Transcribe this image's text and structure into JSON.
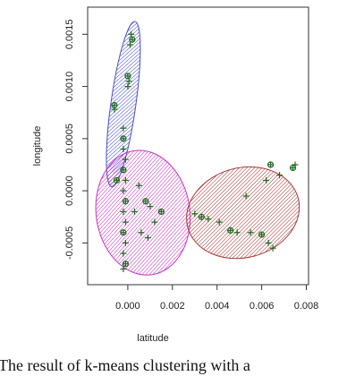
{
  "chart_data": {
    "type": "scatter",
    "x_label": "latitude",
    "y_label": "longitude",
    "caption": "The result of k-means clustering with a",
    "xlim": [
      -0.0018,
      0.0081
    ],
    "ylim": [
      -0.0009,
      0.00176
    ],
    "xticks": [
      {
        "value": 0,
        "label": "0.000"
      },
      {
        "value": 0.002,
        "label": "0.002"
      },
      {
        "value": 0.004,
        "label": "0.004"
      },
      {
        "value": 0.006,
        "label": "0.006"
      },
      {
        "value": 0.008,
        "label": "0.008"
      }
    ],
    "yticks": [
      {
        "value": -0.0005,
        "label": "-0.0005"
      },
      {
        "value": 0,
        "label": "0.0000"
      },
      {
        "value": 0.0005,
        "label": "0.0005"
      },
      {
        "value": 0.001,
        "label": "0.0010"
      },
      {
        "value": 0.0015,
        "label": "0.0015"
      }
    ],
    "ellipses": [
      {
        "cx": -0.0002,
        "cy": 0.00083,
        "rx": 0.00056,
        "ry": 0.0008,
        "angle": 8,
        "color": "#4a4fc8"
      },
      {
        "cx": 0.00068,
        "cy": -0.00021,
        "rx": 0.0021,
        "ry": 0.0006,
        "angle": -8,
        "color": "#c832c8"
      },
      {
        "cx": 0.00516,
        "cy": -0.00021,
        "rx": 0.00256,
        "ry": 0.00043,
        "angle": -15,
        "color": "#a83a3a"
      }
    ],
    "series": [
      {
        "color": "#1f6b1f",
        "x": [
          0.0002,
          0.00015,
          0.0001,
          0.0,
          5e-05,
          0.0,
          -0.0006,
          -0.0006,
          -0.0002,
          -0.0002,
          -0.0002,
          -0.0001,
          -0.0002,
          -0.0001,
          -0.0002,
          -0.0001,
          -0.0002,
          -0.0001,
          -0.0002,
          -0.0001,
          -0.0002,
          -0.0001,
          -0.0002,
          0.0005,
          0.0008,
          0.001,
          0.0012,
          0.0015,
          0.0006,
          0.0009,
          -0.0005,
          0.0003,
          0.003,
          0.0033,
          0.0036,
          0.0041,
          0.0046,
          0.0049,
          0.0055,
          0.006,
          0.0063,
          0.0065,
          0.0064,
          0.0068,
          0.0075,
          0.0074,
          0.0053,
          0.0062
        ],
        "values": [
          0.00145,
          0.0015,
          0.0014,
          0.0011,
          0.00105,
          0.001,
          0.00082,
          0.00078,
          0.0006,
          0.0005,
          0.0004,
          0.0003,
          0.0002,
          0.0001,
          0.0,
          -0.0001,
          -0.0002,
          -0.0003,
          -0.0004,
          -0.0005,
          -0.0006,
          -0.0007,
          -0.00075,
          5e-05,
          -0.0001,
          -0.00015,
          -0.0003,
          -0.0002,
          -0.0004,
          -0.00045,
          0.0001,
          -0.0002,
          -0.00022,
          -0.00025,
          -0.00027,
          -0.0003,
          -0.00038,
          -0.0004,
          -0.0004,
          -0.00042,
          -0.0005,
          -0.00055,
          0.00025,
          0.00015,
          0.00025,
          0.00022,
          -5e-05,
          0.0001
        ]
      }
    ]
  }
}
